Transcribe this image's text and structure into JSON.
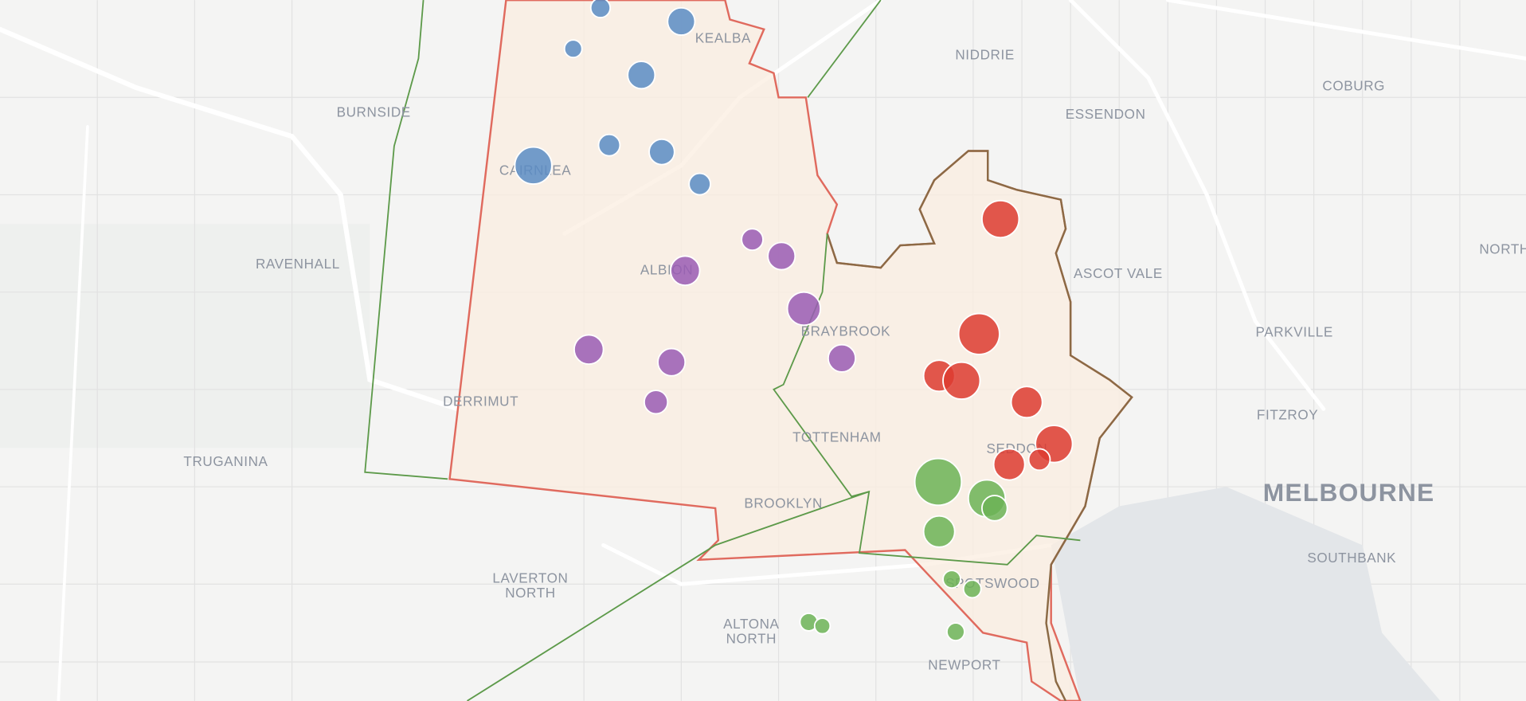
{
  "labels": [
    "KEALBA",
    "NIDDRIE",
    "COBURG",
    "BURNSIDE",
    "ESSENDON",
    "CAIRNLEA",
    "RAVENHALL",
    "ALBION",
    "ASCOT VALE",
    "NORTH",
    "PARKVILLE",
    "BRAYBROOK",
    "DERRIMUT",
    "FITZROY",
    "TOTTENHAM",
    "TRUGANINA",
    "SEDDON",
    "BROOKLYN",
    "SOUTHBANK",
    "LAVERTON",
    "NORTH",
    "SPOTSWOOD",
    "ALTONA",
    "NORTH",
    "NEWPORT"
  ],
  "city": "MELBOURNE"
}
